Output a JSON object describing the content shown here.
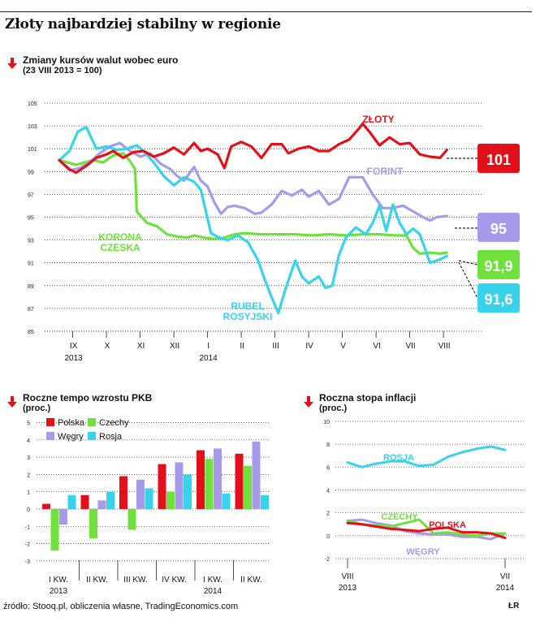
{
  "page": {
    "title": "Złoty najbardziej stabilny w regionie",
    "source": "źródło: Stooq.pl, obliczenia własne, TradingEconomics.com",
    "credit": "ŁR"
  },
  "colors": {
    "zloty": "#e3101a",
    "forint": "#a59bea",
    "korona": "#6fe03c",
    "rubel": "#36d3ea",
    "polska": "#e3101a",
    "czechy": "#6fe03c",
    "wegry": "#a59bea",
    "rosja": "#36d3ea",
    "arrow": "#e3101a"
  },
  "icons": {
    "section_marker": "red-down-arrow-icon"
  },
  "chart_data": [
    {
      "id": "fx",
      "type": "line",
      "title": "Zmiany kursów walut wobec euro",
      "subtitle": "(23 VIII 2013 = 100)",
      "ylim": [
        85,
        105
      ],
      "yticks": [
        "105",
        "103",
        "101",
        "99",
        "97",
        "95",
        "93",
        "91",
        "89",
        "87",
        "85"
      ],
      "xticks": [
        {
          "top": "IX",
          "bottom": "2013"
        },
        {
          "top": "X",
          "bottom": ""
        },
        {
          "top": "XI",
          "bottom": ""
        },
        {
          "top": "XII",
          "bottom": ""
        },
        {
          "top": "I",
          "bottom": "2014"
        },
        {
          "top": "II",
          "bottom": ""
        },
        {
          "top": "III",
          "bottom": ""
        },
        {
          "top": "IV",
          "bottom": ""
        },
        {
          "top": "V",
          "bottom": ""
        },
        {
          "top": "VI",
          "bottom": ""
        },
        {
          "top": "VII",
          "bottom": ""
        },
        {
          "top": "VIII",
          "bottom": ""
        }
      ],
      "x_start": "2013-08-23",
      "series": [
        {
          "key": "zloty",
          "name": "ZŁOTY",
          "end_label": "101",
          "x": [
            0,
            0.3,
            0.5,
            0.8,
            1.1,
            1.4,
            1.6,
            1.9,
            2.2,
            2.5,
            2.8,
            3.1,
            3.4,
            3.7,
            4,
            4.2,
            4.4,
            4.7,
            4.9,
            5.1,
            5.4,
            5.7,
            6,
            6.3,
            6.6,
            6.8,
            7.1,
            7.4,
            7.7,
            8,
            8.3,
            8.6,
            8.9,
            9,
            9.2,
            9.5,
            9.8,
            10.1,
            10.4,
            10.7,
            11,
            11.3,
            11.5
          ],
          "y": [
            100,
            99.2,
            98.9,
            99.5,
            100.2,
            100.5,
            100.8,
            100.2,
            100.7,
            100.8,
            100.3,
            100.6,
            101.1,
            100.5,
            101.5,
            100.8,
            101,
            100.5,
            99.3,
            101.2,
            101.6,
            101.2,
            100.2,
            101.4,
            101.4,
            100.6,
            101,
            101.2,
            100.8,
            100.8,
            101.4,
            101.8,
            102.8,
            103.2,
            102.5,
            101.3,
            102,
            101.4,
            101.5,
            100.5,
            100.3,
            100.2,
            100.9
          ]
        },
        {
          "key": "forint",
          "name": "FORINT",
          "end_label": "95",
          "x": [
            0,
            0.3,
            0.6,
            0.9,
            1.2,
            1.5,
            1.8,
            2.1,
            2.4,
            2.7,
            3,
            3.3,
            3.5,
            3.7,
            4,
            4.2,
            4.4,
            4.6,
            4.8,
            5,
            5.2,
            5.5,
            5.8,
            6,
            6.3,
            6.6,
            6.9,
            7.2,
            7.4,
            7.7,
            8,
            8.3,
            8.6,
            9,
            9.3,
            9.6,
            9.9,
            10.2,
            10.5,
            10.8,
            11,
            11.2,
            11.5
          ],
          "y": [
            100,
            99.1,
            99.3,
            99.8,
            100.6,
            101.2,
            101.5,
            100.8,
            100.3,
            100.6,
            99.7,
            99.2,
            98.6,
            98.2,
            99.4,
            98.2,
            97.7,
            96.3,
            95.3,
            95.9,
            96,
            95.8,
            95.3,
            95.4,
            96.1,
            97.3,
            96.9,
            97.4,
            96.8,
            97.3,
            96.1,
            96.6,
            98.5,
            98.5,
            97,
            95.8,
            95.8,
            96,
            95.5,
            95,
            94.7,
            95,
            95.1
          ]
        },
        {
          "key": "korona",
          "name": "KORONA CZESKA",
          "end_label": "91,9",
          "x": [
            0,
            0.5,
            1,
            1.3,
            1.6,
            1.9,
            2.1,
            2.25,
            2.3,
            2.6,
            2.9,
            3.2,
            3.5,
            3.8,
            4,
            4.3,
            4.6,
            4.9,
            5.2,
            5.5,
            6,
            6.5,
            7,
            7.5,
            8,
            8.5,
            9,
            9.5,
            10,
            10.3,
            10.5,
            10.7,
            11,
            11.3,
            11.5
          ],
          "y": [
            100,
            99.6,
            100,
            99.8,
            100.4,
            100.6,
            99.9,
            99.2,
            95.5,
            94.5,
            94.2,
            93.5,
            93.3,
            93.2,
            93.4,
            93.2,
            93.1,
            93.2,
            93.5,
            93.6,
            93.5,
            93.5,
            93.5,
            93.4,
            93.5,
            93.4,
            93.5,
            93.5,
            93.4,
            93.4,
            92.3,
            91.8,
            91.9,
            91.8,
            91.9
          ]
        },
        {
          "key": "rubel",
          "name": "RUBEL ROSYJSKI",
          "end_label": "91,6",
          "x": [
            0,
            0.3,
            0.55,
            0.8,
            1.1,
            1.4,
            1.7,
            2,
            2.3,
            2.5,
            2.8,
            3.1,
            3.4,
            3.7,
            4,
            4.2,
            4.35,
            4.5,
            4.75,
            5,
            5.3,
            5.6,
            5.9,
            6.1,
            6.3,
            6.5,
            6.7,
            7,
            7.2,
            7.4,
            7.7,
            7.9,
            8.1,
            8.3,
            8.5,
            8.8,
            9.1,
            9.3,
            9.5,
            9.7,
            9.9,
            10.1,
            10.3,
            10.5,
            10.7,
            11,
            11.3,
            11.5
          ],
          "y": [
            100,
            100.8,
            102.5,
            102.9,
            101,
            101.2,
            100.9,
            101,
            101.3,
            100.8,
            99.8,
            98.6,
            97.8,
            98.5,
            98.1,
            97.4,
            95.5,
            93.6,
            93.2,
            93,
            93.4,
            92.8,
            91.2,
            89.5,
            88,
            86.6,
            88.6,
            91.2,
            89.8,
            89.2,
            89.8,
            88.8,
            89,
            91.7,
            93.2,
            94.1,
            93.5,
            94.5,
            96,
            93.8,
            96.1,
            94.5,
            93.5,
            94,
            93.5,
            91,
            91.3,
            91.6
          ]
        }
      ]
    },
    {
      "id": "gdp",
      "type": "bar",
      "title": "Roczne tempo wzrostu PKB",
      "subtitle": "(proc.)",
      "ylim": [
        -3.5,
        5
      ],
      "yticks": [
        "5",
        "4",
        "3",
        "2",
        "1",
        "0",
        "-1",
        "-2",
        "-3"
      ],
      "categories": [
        {
          "top": "I KW.",
          "bottom": "2013"
        },
        {
          "top": "II KW.",
          "bottom": ""
        },
        {
          "top": "III KW.",
          "bottom": ""
        },
        {
          "top": "IV KW.",
          "bottom": ""
        },
        {
          "top": "I KW.",
          "bottom": "2014"
        },
        {
          "top": "II KW.",
          "bottom": ""
        }
      ],
      "series": [
        {
          "key": "polska",
          "name": "Polska",
          "values": [
            0.3,
            0.8,
            1.9,
            2.6,
            3.4,
            3.2
          ]
        },
        {
          "key": "czechy",
          "name": "Czechy",
          "values": [
            -2.4,
            -1.7,
            -1.2,
            1.0,
            2.9,
            2.5
          ]
        },
        {
          "key": "wegry",
          "name": "Węgry",
          "values": [
            -0.9,
            0.5,
            1.7,
            2.7,
            3.5,
            3.9
          ]
        },
        {
          "key": "rosja",
          "name": "Rosja",
          "values": [
            0.8,
            1.0,
            1.2,
            2.0,
            0.9,
            0.8
          ]
        }
      ]
    },
    {
      "id": "cpi",
      "type": "line",
      "title": "Roczna stopa inflacji",
      "subtitle": "(proc.)",
      "ylim": [
        -2,
        10
      ],
      "yticks": [
        "10",
        "8",
        "6",
        "4",
        "2",
        "0",
        "-2"
      ],
      "xticks": [
        {
          "top": "VIII",
          "bottom": "2013"
        },
        {
          "top": "VII",
          "bottom": "2014"
        }
      ],
      "series": [
        {
          "key": "rosja",
          "name": "ROSJA",
          "y": [
            6.4,
            6.0,
            6.3,
            6.5,
            6.5,
            6.1,
            6.2,
            6.9,
            7.3,
            7.6,
            7.8,
            7.5
          ]
        },
        {
          "key": "czechy",
          "name": "CZECHY",
          "y": [
            1.3,
            1.0,
            0.9,
            0.8,
            1.1,
            1.4,
            0.2,
            0.3,
            0.1,
            0.0,
            0.2,
            0.2
          ]
        },
        {
          "key": "polska",
          "name": "POLSKA",
          "y": [
            1.1,
            1.0,
            0.8,
            0.6,
            0.5,
            0.4,
            0.6,
            0.7,
            0.3,
            0.3,
            0.2,
            -0.2
          ]
        },
        {
          "key": "wegry",
          "name": "WĘGRY",
          "y": [
            1.3,
            1.4,
            1.1,
            0.9,
            0.4,
            0.2,
            0.1,
            0.1,
            -0.1,
            -0.1,
            -0.3,
            0.2
          ]
        }
      ]
    }
  ]
}
